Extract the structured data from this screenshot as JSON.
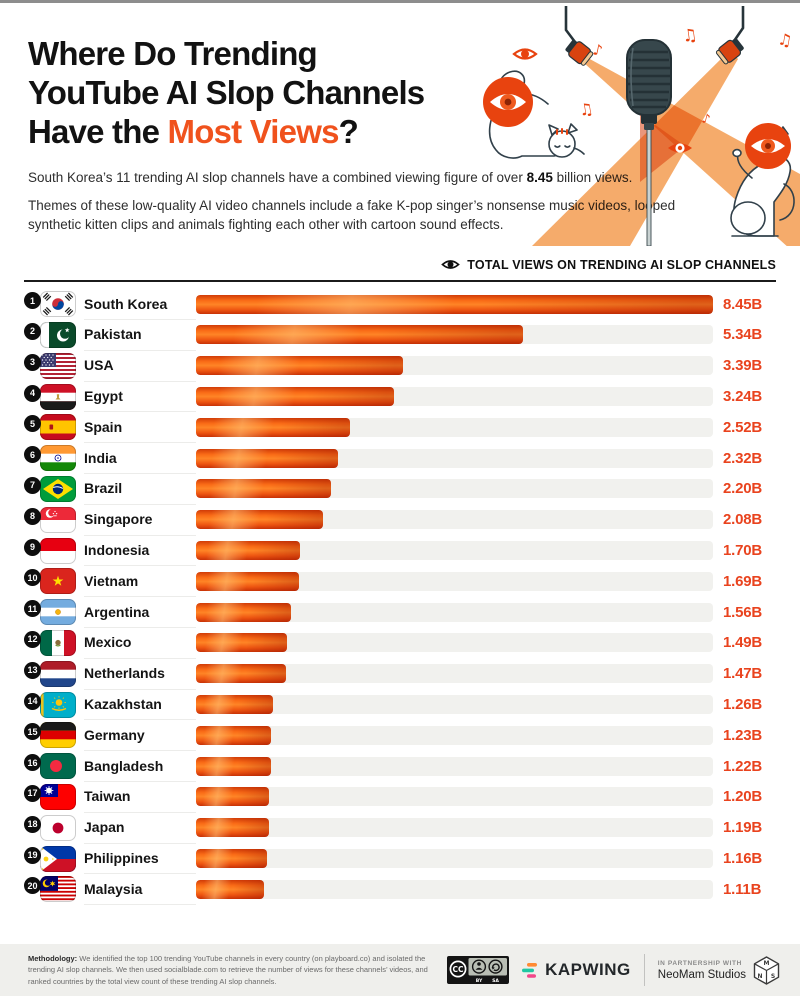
{
  "page": {
    "title_line1": "Where Do Trending",
    "title_line2": "YouTube AI Slop Channels",
    "title_line3_prefix": "Have the ",
    "title_line3_accent": "Most Views",
    "title_line3_suffix": "?",
    "intro_prefix": "South Korea’s 11 trending AI slop channels have a combined viewing figure of over ",
    "intro_bold": "8.45",
    "intro_suffix": " billion views.",
    "description": "Themes of these low-quality AI video channels include a fake K-pop singer’s nonsense music videos, looped synthetic kitten clips and animals fighting each other with cartoon sound effects."
  },
  "chart_header": {
    "label": "TOTAL VIEWS ON TRENDING AI SLOP CHANNELS",
    "icon": "eye-icon"
  },
  "chart_data": {
    "type": "bar",
    "orientation": "horizontal",
    "title": "Where Do Trending YouTube AI Slop Channels Have the Most Views?",
    "series_label": "Total views on trending AI slop channels",
    "unit": "billions of views",
    "xlim": [
      0,
      8.45
    ],
    "categories": [
      "South Korea",
      "Pakistan",
      "USA",
      "Egypt",
      "Spain",
      "India",
      "Brazil",
      "Singapore",
      "Indonesia",
      "Vietnam",
      "Argentina",
      "Mexico",
      "Netherlands",
      "Kazakhstan",
      "Germany",
      "Bangladesh",
      "Taiwan",
      "Japan",
      "Philippines",
      "Malaysia"
    ],
    "values": [
      8.45,
      5.34,
      3.39,
      3.24,
      2.52,
      2.32,
      2.2,
      2.08,
      1.7,
      1.69,
      1.56,
      1.49,
      1.47,
      1.26,
      1.23,
      1.22,
      1.2,
      1.19,
      1.16,
      1.11
    ],
    "rows": [
      {
        "rank": 1,
        "country": "South Korea",
        "flag": "kr",
        "value": 8.45,
        "label": "8.45B"
      },
      {
        "rank": 2,
        "country": "Pakistan",
        "flag": "pk",
        "value": 5.34,
        "label": "5.34B"
      },
      {
        "rank": 3,
        "country": "USA",
        "flag": "us",
        "value": 3.39,
        "label": "3.39B"
      },
      {
        "rank": 4,
        "country": "Egypt",
        "flag": "eg",
        "value": 3.24,
        "label": "3.24B"
      },
      {
        "rank": 5,
        "country": "Spain",
        "flag": "es",
        "value": 2.52,
        "label": "2.52B"
      },
      {
        "rank": 6,
        "country": "India",
        "flag": "in",
        "value": 2.32,
        "label": "2.32B"
      },
      {
        "rank": 7,
        "country": "Brazil",
        "flag": "br",
        "value": 2.2,
        "label": "2.20B"
      },
      {
        "rank": 8,
        "country": "Singapore",
        "flag": "sg",
        "value": 2.08,
        "label": "2.08B"
      },
      {
        "rank": 9,
        "country": "Indonesia",
        "flag": "id",
        "value": 1.7,
        "label": "1.70B"
      },
      {
        "rank": 10,
        "country": "Vietnam",
        "flag": "vn",
        "value": 1.69,
        "label": "1.69B"
      },
      {
        "rank": 11,
        "country": "Argentina",
        "flag": "ar",
        "value": 1.56,
        "label": "1.56B"
      },
      {
        "rank": 12,
        "country": "Mexico",
        "flag": "mx",
        "value": 1.49,
        "label": "1.49B"
      },
      {
        "rank": 13,
        "country": "Netherlands",
        "flag": "nl",
        "value": 1.47,
        "label": "1.47B"
      },
      {
        "rank": 14,
        "country": "Kazakhstan",
        "flag": "kz",
        "value": 1.26,
        "label": "1.26B"
      },
      {
        "rank": 15,
        "country": "Germany",
        "flag": "de",
        "value": 1.23,
        "label": "1.23B"
      },
      {
        "rank": 16,
        "country": "Bangladesh",
        "flag": "bd",
        "value": 1.22,
        "label": "1.22B"
      },
      {
        "rank": 17,
        "country": "Taiwan",
        "flag": "tw",
        "value": 1.2,
        "label": "1.20B"
      },
      {
        "rank": 18,
        "country": "Japan",
        "flag": "jp",
        "value": 1.19,
        "label": "1.19B"
      },
      {
        "rank": 19,
        "country": "Philippines",
        "flag": "ph",
        "value": 1.16,
        "label": "1.16B"
      },
      {
        "rank": 20,
        "country": "Malaysia",
        "flag": "my",
        "value": 1.11,
        "label": "1.11B"
      }
    ]
  },
  "colors": {
    "accent": "#f0521d",
    "value_text": "#e9431e",
    "bar_bright": "#ff8526",
    "bar_dark": "#c83206",
    "track": "#f1f1ee",
    "footer_bg": "#efefec"
  },
  "footer": {
    "methodology_bold": "Methodology:",
    "methodology_text": " We identified the top 100 trending YouTube channels in every country (on playboard.co) and isolated the trending AI slop channels. We then used socialblade.com to retrieve the number of views for these channels’ videos, and ranked countries by the total view count of these trending AI slop channels.",
    "license": {
      "cc": "CC",
      "by": "BY",
      "sa": "SA"
    },
    "kapwing": "KAPWING",
    "partnership": "IN PARTNERSHIP WITH",
    "partner_name": "NeoMam Studios"
  }
}
